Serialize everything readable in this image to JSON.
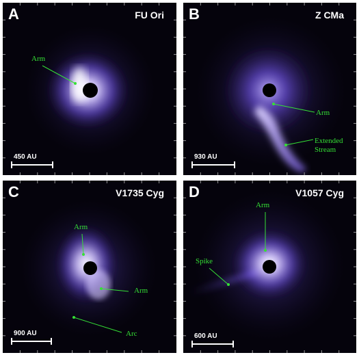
{
  "panels": [
    {
      "letter": "A",
      "name": "FU Ori",
      "scale": "450 AU",
      "labels": {
        "arm": "Arm"
      }
    },
    {
      "letter": "B",
      "name": "Z CMa",
      "scale": "930 AU",
      "labels": {
        "arm": "Arm",
        "stream1": "Extended",
        "stream2": "Stream"
      }
    },
    {
      "letter": "C",
      "name": "V1735 Cyg",
      "scale": "900 AU",
      "labels": {
        "arm1": "Arm",
        "arm2": "Arm",
        "arc": "Arc"
      }
    },
    {
      "letter": "D",
      "name": "V1057 Cyg",
      "scale": "600 AU",
      "labels": {
        "arm": "Arm",
        "spike": "Spike"
      }
    }
  ],
  "colors": {
    "annotation": "#35e035",
    "glow": "#8a6cff",
    "background": "#05030c"
  }
}
